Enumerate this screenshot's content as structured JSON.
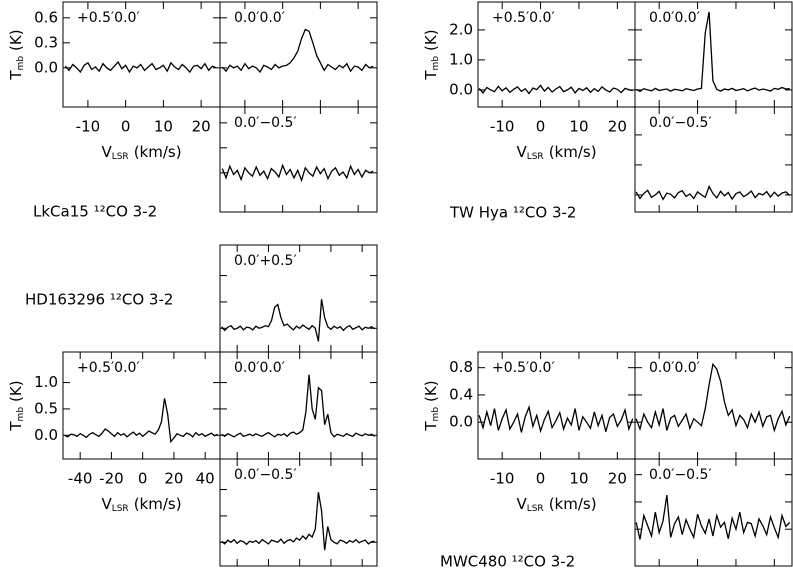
{
  "chart_data": [
    {
      "type": "line",
      "title": "LkCa15 ¹²CO 3-2",
      "ylabel": {
        "text": "T",
        "sub": "mb",
        "unit": "(K)"
      },
      "xlabel": {
        "text": "V",
        "sub": "LSR",
        "unit": "(km/s)"
      },
      "color": "#000000",
      "x": [
        -16,
        -15,
        -14,
        -13,
        -12,
        -11,
        -10,
        -9,
        -8,
        -7,
        -6,
        -5,
        -4,
        -3,
        -2,
        -1,
        0,
        1,
        2,
        3,
        4,
        5,
        6,
        7,
        8,
        9,
        10,
        11,
        12,
        13,
        14,
        15,
        16,
        17,
        18,
        19,
        20,
        21,
        22,
        23,
        24
      ],
      "xlim": [
        -16.6,
        25
      ],
      "xticks": [
        -10,
        0,
        10,
        20
      ],
      "ylim": [
        -0.47,
        0.79
      ],
      "yticks": [
        0.6,
        0.3,
        {
          "value": 0,
          "label": "0.0"
        }
      ],
      "panels": [
        {
          "label": "+0.5′0.0′",
          "values": [
            0.02,
            -0.03,
            0.04,
            0.0,
            -0.05,
            0.03,
            0.06,
            -0.02,
            0.01,
            -0.04,
            0.05,
            0.0,
            -0.03,
            0.02,
            0.07,
            -0.01,
            0.03,
            -0.05,
            0.02,
            0.0,
            0.04,
            -0.03,
            0.01,
            0.05,
            -0.02,
            0.0,
            0.03,
            -0.04,
            0.06,
            0.01,
            -0.02,
            0.04,
            0.0,
            -0.05,
            0.02,
            0.03,
            -0.01,
            0.05,
            -0.03,
            0.02,
            0.0
          ]
        },
        {
          "label": "0.0′0.0′",
          "values": [
            0.01,
            -0.04,
            0.03,
            0.0,
            0.02,
            -0.03,
            0.05,
            -0.01,
            0.02,
            0.0,
            -0.05,
            0.03,
            0.01,
            -0.02,
            0.04,
            0.0,
            0.02,
            0.03,
            0.06,
            0.12,
            0.2,
            0.35,
            0.46,
            0.44,
            0.3,
            0.15,
            0.06,
            -0.03,
            0.04,
            0.01,
            -0.02,
            0.03,
            0.0,
            0.05,
            -0.04,
            0.02,
            0.01,
            -0.03,
            0.04,
            0.0,
            0.02
          ]
        },
        {
          "label": "0.0′−0.5′",
          "values": [
            0.05,
            -0.06,
            0.08,
            -0.02,
            0.03,
            -0.08,
            0.06,
            0.0,
            -0.04,
            0.07,
            -0.03,
            0.02,
            -0.07,
            0.05,
            0.01,
            -0.05,
            0.09,
            -0.02,
            0.04,
            -0.06,
            0.03,
            -0.09,
            0.06,
            0.0,
            -0.04,
            0.07,
            -0.01,
            0.05,
            -0.07,
            0.02,
            0.06,
            -0.03,
            0.01,
            -0.06,
            0.08,
            -0.02,
            0.04,
            -0.05,
            0.03,
            0.0,
            0.02
          ]
        }
      ]
    },
    {
      "type": "line",
      "title": "TW Hya ¹²CO 3-2",
      "ylabel": {
        "text": "T",
        "sub": "mb",
        "unit": "(K)"
      },
      "xlabel": {
        "text": "V",
        "sub": "LSR",
        "unit": "(km/s)"
      },
      "color": "#000000",
      "x": [
        -16,
        -15,
        -14,
        -13,
        -12,
        -11,
        -10,
        -9,
        -8,
        -7,
        -6,
        -5,
        -4,
        -3,
        -2,
        -1,
        0,
        1,
        2,
        3,
        4,
        5,
        6,
        7,
        8,
        9,
        10,
        11,
        12,
        13,
        14,
        15,
        16,
        17,
        18,
        19,
        20,
        21,
        22,
        23,
        24
      ],
      "xlim": [
        -16.3,
        24.6
      ],
      "xticks": [
        -10,
        0,
        10,
        20
      ],
      "ylim": [
        -0.57,
        2.93
      ],
      "yticks": [
        {
          "value": 2,
          "label": "2.0"
        },
        {
          "value": 1,
          "label": "1.0"
        },
        {
          "value": 0,
          "label": "0.0"
        }
      ],
      "panels": [
        {
          "label": "+0.5′0.0′",
          "values": [
            0.05,
            -0.1,
            0.08,
            0.0,
            -0.06,
            0.12,
            -0.03,
            0.07,
            -0.08,
            0.02,
            0.1,
            -0.05,
            0.04,
            -0.12,
            0.06,
            0.01,
            0.15,
            -0.04,
            0.08,
            -0.07,
            0.03,
            0.11,
            -0.06,
            0.0,
            0.09,
            -0.1,
            0.05,
            -0.02,
            0.07,
            -0.08,
            0.04,
            -0.05,
            0.1,
            0.0,
            -0.07,
            0.06,
            0.02,
            -0.09,
            0.05,
            0.01,
            -0.03
          ]
        },
        {
          "label": "0.0′0.0′",
          "values": [
            0.02,
            -0.05,
            0.04,
            0.0,
            -0.03,
            0.05,
            -0.02,
            0.01,
            0.03,
            -0.04,
            0.02,
            0.0,
            -0.03,
            0.04,
            0.01,
            -0.02,
            0.03,
            0.05,
            1.9,
            2.6,
            0.3,
            0.02,
            -0.04,
            0.03,
            0.0,
            0.05,
            -0.02,
            0.01,
            0.04,
            -0.03,
            0.02,
            0.06,
            -0.01,
            0.03,
            0.0,
            -0.04,
            0.05,
            0.02,
            0.08,
            0.03,
            0.04
          ]
        },
        {
          "label": "0.0′−0.5′",
          "values": [
            0.1,
            -0.12,
            0.05,
            0.15,
            -0.08,
            0.0,
            0.12,
            -0.15,
            0.06,
            0.02,
            -0.1,
            0.08,
            0.14,
            -0.05,
            0.03,
            -0.12,
            0.1,
            0.0,
            -0.08,
            0.28,
            0.05,
            -0.1,
            0.12,
            -0.03,
            0.08,
            -0.14,
            0.04,
            0.1,
            -0.06,
            0.02,
            0.13,
            -0.09,
            0.05,
            0.0,
            0.11,
            -0.07,
            0.09,
            -0.04,
            0.06,
            0.1,
            -0.02
          ]
        }
      ]
    },
    {
      "type": "line",
      "title": "HD163296 ¹²CO 3-2",
      "ylabel": {
        "text": "T",
        "sub": "mb",
        "unit": "(K)"
      },
      "xlabel": {
        "text": "V",
        "sub": "LSR",
        "unit": "(km/s)"
      },
      "color": "#000000",
      "x": [
        -50,
        -48,
        -46,
        -44,
        -42,
        -40,
        -38,
        -36,
        -34,
        -32,
        -30,
        -28,
        -26,
        -24,
        -22,
        -20,
        -18,
        -16,
        -14,
        -12,
        -10,
        -8,
        -6,
        -4,
        -2,
        0,
        2,
        4,
        6,
        8,
        10,
        12,
        14,
        16,
        18,
        20,
        22,
        24,
        26,
        28,
        30,
        32,
        34,
        36,
        38,
        40,
        42,
        44,
        46,
        48
      ],
      "xlim": [
        -51,
        49.5
      ],
      "xticks": [
        -40,
        -20,
        0,
        20,
        40
      ],
      "ylim": [
        -0.45,
        1.58
      ],
      "yticks": [
        {
          "value": 1,
          "label": "1.0"
        },
        0.5,
        {
          "value": 0,
          "label": "0.0"
        }
      ],
      "panels": [
        {
          "label": "0.0′+0.5′",
          "values": [
            0.03,
            -0.04,
            0.02,
            0.05,
            -0.02,
            0.0,
            0.04,
            -0.03,
            0.02,
            0.01,
            -0.03,
            0.04,
            0.0,
            0.02,
            0.05,
            0.03,
            0.15,
            0.4,
            0.45,
            0.2,
            0.05,
            0.08,
            0.02,
            -0.03,
            0.04,
            0.0,
            0.06,
            0.02,
            -0.02,
            0.05,
            0.0,
            -0.25,
            0.55,
            0.2,
            0.03,
            -0.02,
            0.04,
            0.0,
            0.03,
            -0.04,
            0.02,
            0.05,
            -0.02,
            0.01,
            0.04,
            -0.03,
            0.02,
            0.0,
            0.03,
            -0.01
          ]
        },
        {
          "label": "+0.5′0.0′",
          "values": [
            0.0,
            -0.03,
            0.02,
            0.01,
            -0.02,
            0.03,
            0.0,
            -0.04,
            0.02,
            0.05,
            0.01,
            -0.02,
            0.04,
            0.12,
            0.08,
            0.03,
            -0.02,
            0.05,
            0.0,
            0.03,
            -0.03,
            0.02,
            0.06,
            0.0,
            0.04,
            -0.02,
            0.03,
            0.08,
            0.05,
            0.02,
            0.1,
            0.25,
            0.7,
            0.4,
            -0.12,
            -0.05,
            0.03,
            0.0,
            -0.02,
            0.04,
            0.02,
            -0.03,
            0.05,
            0.0,
            0.03,
            -0.02,
            0.01,
            0.04,
            -0.01,
            0.02
          ]
        },
        {
          "label": "0.0′0.0′",
          "values": [
            0.02,
            -0.02,
            0.03,
            0.0,
            -0.03,
            0.01,
            0.04,
            -0.02,
            0.0,
            0.02,
            -0.01,
            0.03,
            0.0,
            -0.02,
            0.02,
            0.05,
            0.01,
            -0.03,
            0.02,
            0.0,
            0.03,
            -0.02,
            0.04,
            0.06,
            0.02,
            0.05,
            0.1,
            0.45,
            1.15,
            0.5,
            0.3,
            0.9,
            0.85,
            0.2,
            0.4,
            0.05,
            -0.03,
            0.02,
            0.0,
            -0.02,
            0.03,
            0.0,
            -0.02,
            0.04,
            0.01,
            -0.01,
            0.03,
            0.0,
            0.02,
            -0.02
          ]
        },
        {
          "label": "0.0′−0.5′",
          "values": [
            0.02,
            -0.03,
            0.04,
            0.0,
            0.05,
            -0.02,
            0.03,
            0.01,
            -0.04,
            0.02,
            0.0,
            0.03,
            -0.02,
            0.05,
            0.01,
            -0.03,
            0.04,
            0.02,
            0.0,
            0.06,
            -0.02,
            0.03,
            0.05,
            0.01,
            0.08,
            0.04,
            0.12,
            0.06,
            0.15,
            0.1,
            0.25,
            0.95,
            0.6,
            -0.15,
            0.3,
            0.05,
            0.0,
            -0.03,
            0.04,
            0.02,
            -0.02,
            0.03,
            0.0,
            0.05,
            -0.01,
            0.02,
            0.04,
            -0.03,
            0.01,
            0.02
          ]
        }
      ]
    },
    {
      "type": "line",
      "title": "MWC480 ¹²CO 3-2",
      "ylabel": {
        "text": "T",
        "sub": "mb",
        "unit": "(K)"
      },
      "xlabel": {
        "text": "V",
        "sub": "LSR",
        "unit": "(km/s)"
      },
      "color": "#000000",
      "x": [
        -16,
        -15,
        -14,
        -13,
        -12,
        -11,
        -10,
        -9,
        -8,
        -7,
        -6,
        -5,
        -4,
        -3,
        -2,
        -1,
        0,
        1,
        2,
        3,
        4,
        5,
        6,
        7,
        8,
        9,
        10,
        11,
        12,
        13,
        14,
        15,
        16,
        17,
        18,
        19,
        20,
        21,
        22,
        23,
        24
      ],
      "xlim": [
        -16.3,
        24.6
      ],
      "xticks": [
        -10,
        0,
        10,
        20
      ],
      "ylim": [
        -0.54,
        1.03
      ],
      "yticks": [
        0.8,
        0.4,
        {
          "value": 0,
          "label": "0.0"
        }
      ],
      "panels": [
        {
          "label": "+0.5′0.0′",
          "values": [
            0.1,
            -0.08,
            0.15,
            -0.05,
            0.2,
            -0.12,
            0.05,
            0.18,
            -0.1,
            0.0,
            0.12,
            -0.15,
            0.08,
            0.22,
            -0.06,
            0.1,
            -0.13,
            0.04,
            0.16,
            -0.08,
            0.02,
            0.14,
            -0.1,
            0.06,
            -0.04,
            0.2,
            -0.12,
            0.08,
            0.0,
            -0.09,
            0.15,
            -0.05,
            0.1,
            -0.14,
            0.07,
            0.12,
            -0.06,
            0.03,
            0.18,
            -0.1,
            0.05
          ]
        },
        {
          "label": "0.0′0.0′",
          "values": [
            0.05,
            -0.1,
            0.12,
            0.0,
            -0.08,
            0.15,
            -0.04,
            0.2,
            -0.12,
            0.06,
            0.1,
            -0.06,
            0.03,
            0.12,
            -0.09,
            0.05,
            0.0,
            -0.05,
            0.2,
            0.55,
            0.85,
            0.78,
            0.6,
            0.3,
            0.1,
            0.18,
            -0.05,
            0.1,
            0.04,
            -0.08,
            0.12,
            0.0,
            0.15,
            -0.06,
            0.08,
            0.1,
            -0.12,
            0.05,
            0.16,
            -0.04,
            0.09
          ]
        },
        {
          "label": "0.0′−0.5′",
          "values": [
            0.1,
            -0.15,
            0.2,
            0.05,
            -0.1,
            0.25,
            -0.05,
            0.12,
            0.5,
            -0.12,
            0.08,
            0.18,
            -0.08,
            0.14,
            0.0,
            -0.12,
            0.22,
            0.05,
            -0.06,
            0.15,
            -0.1,
            0.2,
            0.03,
            0.1,
            -0.14,
            0.16,
            0.0,
            0.25,
            -0.05,
            0.1,
            0.08,
            -0.1,
            0.15,
            0.05,
            -0.08,
            0.18,
            0.02,
            -0.12,
            0.2,
            0.04,
            0.1
          ]
        }
      ]
    }
  ]
}
